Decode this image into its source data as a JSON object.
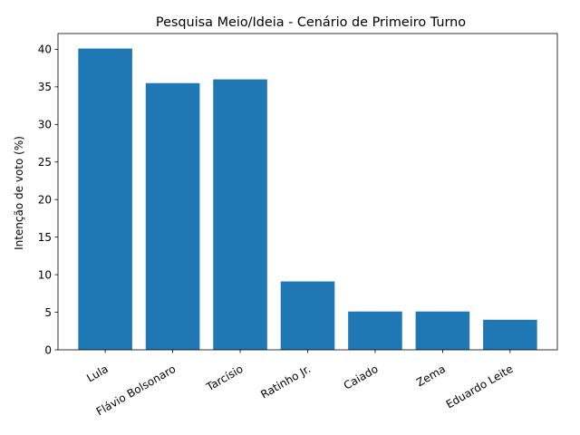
{
  "chart_data": {
    "type": "bar",
    "title": "Pesquisa Meio/Ideia - Cenário de Primeiro Turno",
    "xlabel": "",
    "ylabel": "Intenção de voto (%)",
    "categories": [
      "Lula",
      "Flávio Bolsonaro",
      "Tarcísio",
      "Ratinho Jr.",
      "Caiado",
      "Zema",
      "Eduardo Leite"
    ],
    "values": [
      40.1,
      35.5,
      36.0,
      9.1,
      5.1,
      5.1,
      4.0
    ],
    "ylim": [
      0,
      42.1
    ],
    "yticks": [
      0,
      5,
      10,
      15,
      20,
      25,
      30,
      35,
      40
    ],
    "bar_color": "#1f77b4",
    "grid": false,
    "xtick_rotation_deg": 30
  }
}
